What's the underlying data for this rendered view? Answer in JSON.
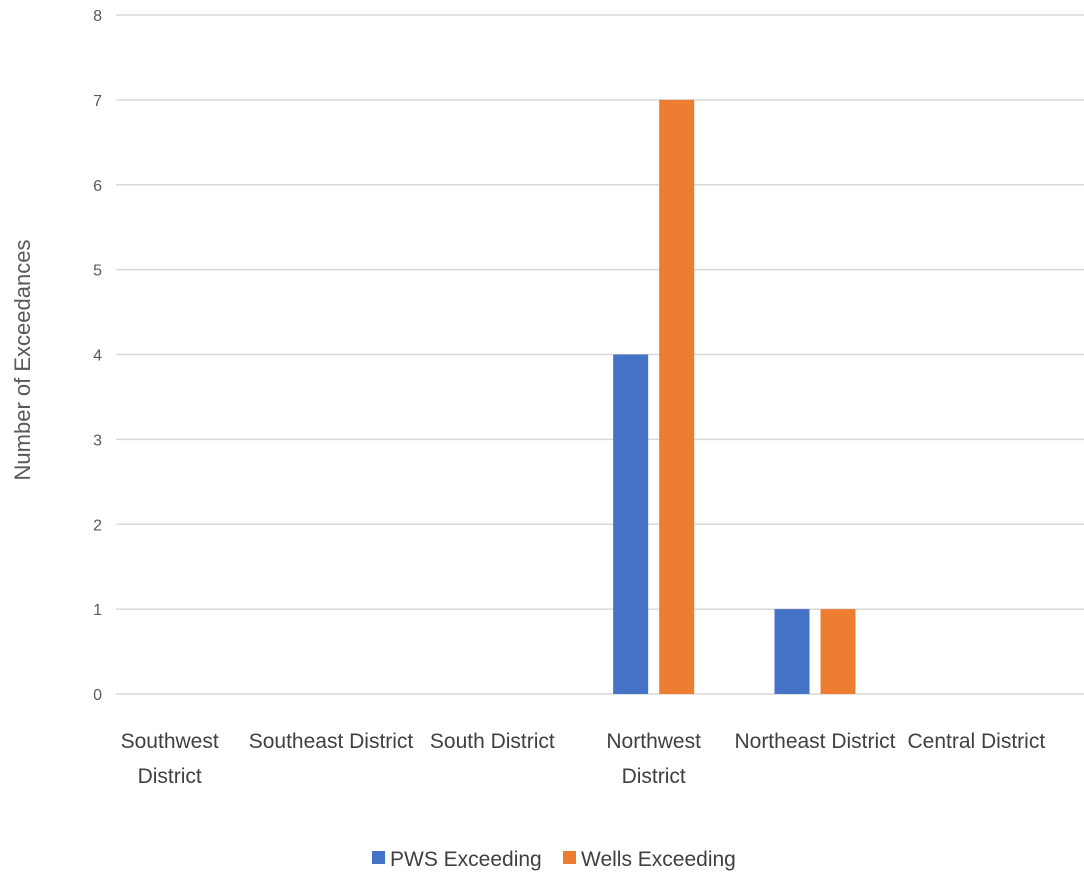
{
  "chart_data": {
    "type": "bar",
    "title": "",
    "xlabel": "",
    "ylabel": "Number of Exceedances",
    "ylim": [
      0,
      8
    ],
    "yticks": [
      0,
      1,
      2,
      3,
      4,
      5,
      6,
      7,
      8
    ],
    "grid": true,
    "legend_position": "bottom",
    "categories": [
      [
        "Southwest",
        "District"
      ],
      [
        "Southeast District"
      ],
      [
        "South District"
      ],
      [
        "Northwest",
        "District"
      ],
      [
        "Northeast District"
      ],
      [
        "Central District"
      ]
    ],
    "series": [
      {
        "name": "PWS Exceeding",
        "color": "#4472C4",
        "values": [
          0,
          0,
          0,
          4,
          1,
          0
        ]
      },
      {
        "name": "Wells Exceeding",
        "color": "#ED7D31",
        "values": [
          0,
          0,
          0,
          7,
          1,
          0
        ]
      }
    ]
  }
}
